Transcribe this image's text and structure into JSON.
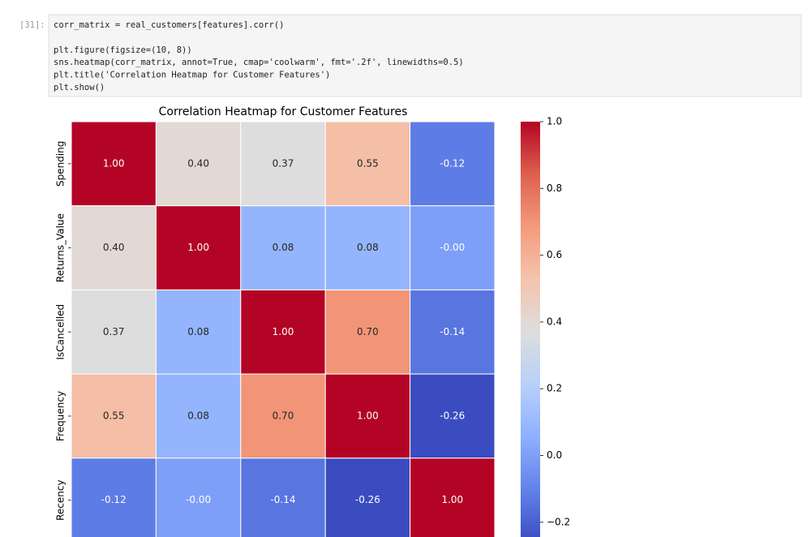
{
  "notebook": {
    "prompt": "[31]:",
    "code": [
      "corr_matrix = real_customers[features].corr()",
      "",
      "plt.figure(figsize=(10, 8))",
      "sns.heatmap(corr_matrix, annot=True, cmap='coolwarm', fmt='.2f', linewidths=0.5)",
      "plt.title('Correlation Heatmap for Customer Features')",
      "plt.show()"
    ]
  },
  "chart_data": {
    "type": "heatmap",
    "title": "Correlation Heatmap for Customer Features",
    "rows": [
      "Spending",
      "Returns_Value",
      "IsCancelled",
      "Frequency",
      "Recency"
    ],
    "values": [
      [
        1,
        0.4,
        0.37,
        0.55,
        -0.12
      ],
      [
        0.4,
        1,
        0.08,
        0.08,
        -0.003
      ],
      [
        0.37,
        0.08,
        1,
        0.7,
        -0.14
      ],
      [
        0.55,
        0.08,
        0.7,
        1,
        -0.26
      ],
      [
        -0.12,
        -0.003,
        -0.14,
        -0.26,
        1
      ]
    ],
    "value_labels": [
      [
        "1.00",
        "0.40",
        "0.37",
        "0.55",
        "-0.12"
      ],
      [
        "0.40",
        "1.00",
        "0.08",
        "0.08",
        "-0.00"
      ],
      [
        "0.37",
        "0.08",
        "1.00",
        "0.70",
        "-0.14"
      ],
      [
        "0.55",
        "0.08",
        "0.70",
        "1.00",
        "-0.26"
      ],
      [
        "-0.12",
        "-0.00",
        "-0.14",
        "-0.26",
        "1.00"
      ]
    ],
    "zlim": [
      -0.26,
      1
    ],
    "zticks": [
      {
        "value": -0.2,
        "label": "−0.2"
      },
      {
        "value": 0,
        "label": "0.0"
      },
      0.2,
      0.4,
      0.6,
      0.8,
      {
        "value": 1,
        "label": "1.0"
      }
    ],
    "colors": [
      "#3b4cc0",
      "#6282ea",
      "#8db0fe",
      "#b8d0f9",
      "#dddddd",
      "#f5c4ad",
      "#f49a7b",
      "#de604d",
      "#b40426"
    ]
  }
}
